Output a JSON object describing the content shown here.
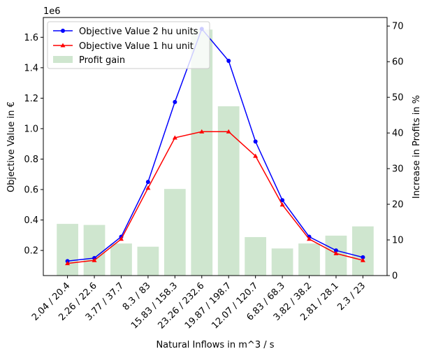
{
  "chart_data": {
    "type": "bar+line",
    "xlabel": "Natural Inflows in m^3 / s",
    "ylabel_left": "Objective Value in €",
    "ylabel_right": "Increase in Profits in %",
    "left_axis_multiplier": "1e6",
    "categories": [
      "2.04 / 20.4",
      "2.26 / 22.6",
      "3.77 / 37.7",
      "8.3 / 83",
      "15.83 / 158.3",
      "23.26 / 232.6",
      "19.87 / 198.7",
      "12.07 / 120.7",
      "6.83 / 68.3",
      "3.82 / 38.2",
      "2.81 / 28.1",
      "2.3 / 23"
    ],
    "ylim_left": [
      0.035,
      1.73
    ],
    "ylim_right": [
      0,
      72.4
    ],
    "yticks_left": [
      "0.2",
      "0.4",
      "0.6",
      "0.8",
      "1.0",
      "1.2",
      "1.4",
      "1.6"
    ],
    "yticks_right": [
      "0",
      "10",
      "20",
      "30",
      "40",
      "50",
      "60",
      "70"
    ],
    "series": [
      {
        "name": "Objective Value 2 hu units",
        "axis": "left",
        "kind": "line",
        "marker": "circle",
        "color": "#0000ff",
        "values": [
          0.13,
          0.15,
          0.29,
          0.65,
          1.175,
          1.655,
          1.445,
          0.915,
          0.53,
          0.29,
          0.2,
          0.155
        ]
      },
      {
        "name": "Objective Value 1 hu unit",
        "axis": "left",
        "kind": "line",
        "marker": "triangle",
        "color": "#ff0000",
        "values": [
          0.115,
          0.135,
          0.275,
          0.61,
          0.94,
          0.98,
          0.98,
          0.82,
          0.5,
          0.275,
          0.18,
          0.135
        ]
      },
      {
        "name": "Profit gain",
        "axis": "right",
        "kind": "bar",
        "color": "#cfe6cf",
        "values": [
          14.5,
          14.2,
          9.0,
          8.1,
          24.3,
          69.0,
          47.5,
          10.8,
          7.6,
          9.0,
          11.2,
          13.8
        ]
      }
    ],
    "legend_position": "upper-left",
    "grid": false
  }
}
